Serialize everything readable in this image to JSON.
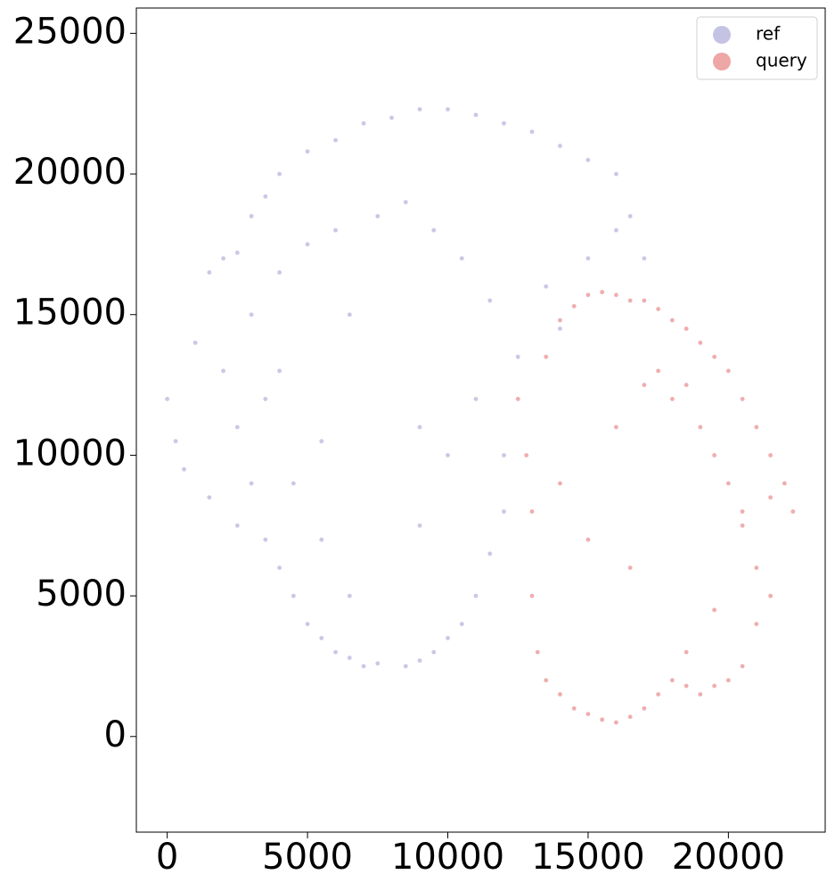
{
  "chart_data": {
    "type": "scatter",
    "xlim": [
      -1100,
      23450
    ],
    "ylim": [
      -3400,
      25900
    ],
    "xticks": [
      0,
      5000,
      10000,
      15000,
      20000
    ],
    "yticks": [
      0,
      5000,
      10000,
      15000,
      20000,
      25000
    ],
    "legend": "upper right",
    "series": [
      {
        "name": "ref",
        "color": "#c4c3e3",
        "x": [
          0,
          300,
          600,
          1000,
          1500,
          2000,
          2500,
          3000,
          3500,
          4000,
          5000,
          6000,
          7000,
          8000,
          9000,
          10000,
          11000,
          12000,
          13000,
          14000,
          15000,
          16000,
          16500,
          17000,
          2000,
          2500,
          3000,
          3500,
          4000,
          4500,
          5000,
          5500,
          6000,
          6500,
          7000,
          7500,
          8500,
          9000,
          9500,
          10000,
          10500,
          11000,
          11500,
          12000,
          1500,
          2500,
          3500,
          4500,
          5500,
          6500,
          7500,
          8500,
          9500,
          10500,
          11500,
          12500,
          3000,
          4000,
          5000,
          6000,
          9000,
          10000,
          11000,
          12000,
          5500,
          6500,
          9000,
          4000,
          13500,
          14000,
          15000,
          16000
        ],
        "values": [
          12000,
          10500,
          9500,
          14000,
          16500,
          17000,
          17200,
          18500,
          19200,
          20000,
          20800,
          21200,
          21800,
          22000,
          22300,
          22300,
          22100,
          21800,
          21500,
          21000,
          20500,
          20000,
          18500,
          17000,
          13000,
          11000,
          9000,
          7000,
          6000,
          5000,
          4000,
          3500,
          3000,
          2800,
          2500,
          2600,
          2500,
          2700,
          3000,
          3500,
          4000,
          5000,
          6500,
          8000,
          8500,
          7500,
          12000,
          9000,
          10500,
          15000,
          18500,
          19000,
          18000,
          17000,
          15500,
          13500,
          15000,
          16500,
          17500,
          18000,
          11000,
          10000,
          12000,
          10000,
          7000,
          5000,
          7500,
          13000,
          16000,
          14500,
          17000,
          18000
        ]
      },
      {
        "name": "query",
        "color": "#eea6a6",
        "x": [
          12500,
          12800,
          13000,
          13500,
          14000,
          14500,
          15000,
          15500,
          16000,
          16500,
          17000,
          17500,
          18000,
          18500,
          19000,
          19500,
          20000,
          20500,
          21000,
          21500,
          22000,
          22300,
          13000,
          13200,
          13500,
          14000,
          14500,
          15000,
          15500,
          16000,
          16500,
          17000,
          17500,
          18000,
          18500,
          19000,
          19500,
          20000,
          20500,
          21000,
          17000,
          17500,
          18000,
          18500,
          19000,
          19500,
          20000,
          20500,
          21000,
          21500,
          14000,
          15000,
          16000,
          16500,
          18500,
          19500,
          20500,
          21500
        ],
        "values": [
          12000,
          10000,
          8000,
          13500,
          14800,
          15300,
          15700,
          15800,
          15700,
          15500,
          15500,
          15200,
          14800,
          14500,
          14000,
          13500,
          13000,
          12000,
          11000,
          10000,
          9000,
          8000,
          5000,
          3000,
          2000,
          1500,
          1000,
          800,
          600,
          500,
          700,
          1000,
          1500,
          2000,
          1800,
          1500,
          1800,
          2000,
          2500,
          4000,
          12500,
          13000,
          12000,
          12500,
          11000,
          10000,
          9000,
          8000,
          6000,
          5000,
          9000,
          7000,
          11000,
          6000,
          3000,
          4500,
          7500,
          8500
        ]
      }
    ]
  }
}
